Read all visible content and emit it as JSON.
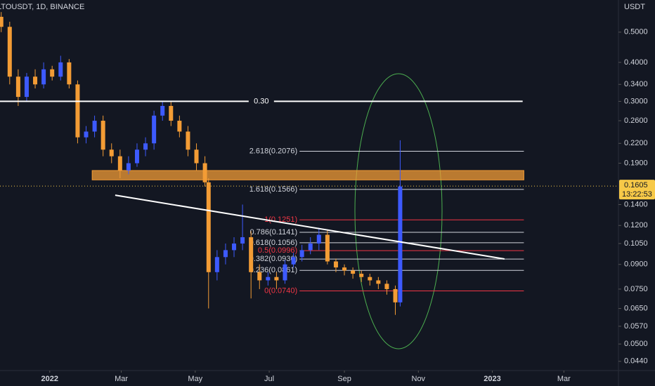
{
  "chart_data": {
    "type": "candlestick",
    "title": "LTOUSDT, 1D, BINANCE",
    "y_axis_label": "USDT",
    "log_scale": true,
    "xlim": [
      -41,
      469
    ],
    "ylim": [
      0.0411,
      0.634
    ],
    "xticks": [
      {
        "value": 0,
        "label": "2022"
      },
      {
        "value": 59,
        "label": "Mar"
      },
      {
        "value": 120,
        "label": "May"
      },
      {
        "value": 181,
        "label": "Jul"
      },
      {
        "value": 243,
        "label": "Sep"
      },
      {
        "value": 304,
        "label": "Nov"
      },
      {
        "value": 365,
        "label": "2023"
      },
      {
        "value": 424,
        "label": "Mar"
      }
    ],
    "yticks": [
      {
        "value": 0.5,
        "label": "0.5000"
      },
      {
        "value": 0.4,
        "label": "0.4000"
      },
      {
        "value": 0.34,
        "label": "0.3400"
      },
      {
        "value": 0.3,
        "label": "0.3000"
      },
      {
        "value": 0.26,
        "label": "0.2600"
      },
      {
        "value": 0.22,
        "label": "0.2200"
      },
      {
        "value": 0.19,
        "label": "0.1900"
      },
      {
        "value": 0.14,
        "label": "0.1400"
      },
      {
        "value": 0.12,
        "label": "0.1200"
      },
      {
        "value": 0.105,
        "label": "0.1050"
      },
      {
        "value": 0.09,
        "label": "0.0900"
      },
      {
        "value": 0.075,
        "label": "0.0750"
      },
      {
        "value": 0.065,
        "label": "0.0650"
      },
      {
        "value": 0.057,
        "label": "0.0570"
      },
      {
        "value": 0.05,
        "label": "0.0500"
      },
      {
        "value": 0.044,
        "label": "0.0440"
      }
    ],
    "up_color": "#3d5afe",
    "down_color": "#f39c35",
    "x": [
      -40,
      -33,
      -26,
      -19,
      -12,
      -5,
      2,
      9,
      16,
      23,
      30,
      37,
      44,
      51,
      58,
      65,
      72,
      79,
      86,
      93,
      100,
      107,
      114,
      121,
      128,
      131,
      138,
      145,
      152,
      159,
      166,
      173,
      180,
      187,
      194,
      201,
      208,
      215,
      222,
      229,
      236,
      243,
      250,
      257,
      264,
      271,
      278,
      285,
      289
    ],
    "open": [
      0.56,
      0.52,
      0.36,
      0.31,
      0.36,
      0.34,
      0.38,
      0.36,
      0.4,
      0.34,
      0.23,
      0.24,
      0.26,
      0.21,
      0.2,
      0.18,
      0.19,
      0.21,
      0.22,
      0.27,
      0.29,
      0.26,
      0.24,
      0.21,
      0.19,
      0.165,
      0.085,
      0.095,
      0.1,
      0.105,
      0.11,
      0.085,
      0.08,
      0.082,
      0.08,
      0.09,
      0.095,
      0.1,
      0.105,
      0.112,
      0.092,
      0.088,
      0.086,
      0.084,
      0.082,
      0.08,
      0.078,
      0.075,
      0.068
    ],
    "high": [
      0.58,
      0.54,
      0.38,
      0.37,
      0.38,
      0.4,
      0.39,
      0.42,
      0.41,
      0.35,
      0.25,
      0.27,
      0.27,
      0.22,
      0.21,
      0.2,
      0.22,
      0.23,
      0.28,
      0.3,
      0.3,
      0.27,
      0.25,
      0.22,
      0.2,
      0.17,
      0.1,
      0.105,
      0.11,
      0.14,
      0.115,
      0.09,
      0.085,
      0.085,
      0.093,
      0.098,
      0.104,
      0.11,
      0.118,
      0.116,
      0.094,
      0.09,
      0.088,
      0.086,
      0.084,
      0.082,
      0.08,
      0.077,
      0.225
    ],
    "low": [
      0.5,
      0.34,
      0.29,
      0.3,
      0.33,
      0.33,
      0.35,
      0.35,
      0.33,
      0.22,
      0.22,
      0.23,
      0.2,
      0.19,
      0.17,
      0.175,
      0.185,
      0.2,
      0.21,
      0.26,
      0.25,
      0.23,
      0.2,
      0.18,
      0.16,
      0.065,
      0.08,
      0.09,
      0.095,
      0.1,
      0.07,
      0.075,
      0.077,
      0.075,
      0.078,
      0.088,
      0.092,
      0.097,
      0.1,
      0.09,
      0.085,
      0.083,
      0.081,
      0.079,
      0.077,
      0.075,
      0.072,
      0.062,
      0.066
    ],
    "close": [
      0.52,
      0.36,
      0.31,
      0.36,
      0.34,
      0.38,
      0.36,
      0.4,
      0.34,
      0.23,
      0.24,
      0.26,
      0.21,
      0.2,
      0.18,
      0.19,
      0.21,
      0.22,
      0.27,
      0.29,
      0.26,
      0.24,
      0.21,
      0.19,
      0.165,
      0.085,
      0.095,
      0.1,
      0.105,
      0.11,
      0.085,
      0.08,
      0.082,
      0.08,
      0.09,
      0.095,
      0.1,
      0.105,
      0.112,
      0.092,
      0.088,
      0.086,
      0.084,
      0.082,
      0.08,
      0.078,
      0.075,
      0.068,
      0.16
    ],
    "level_line": {
      "value": 0.3,
      "label": "0.30",
      "x": [
        -41,
        390
      ]
    },
    "zone": {
      "low": 0.168,
      "high": 0.18,
      "x": [
        35,
        391
      ],
      "color": "#f39c35"
    },
    "trendline": {
      "x": [
        54,
        375
      ],
      "y": [
        0.15,
        0.0937
      ]
    },
    "fib_x": [
      206,
      391
    ],
    "fib_levels": [
      {
        "value": 0.2076,
        "label": "2.618(0.2076)",
        "color": "#d1d4dc"
      },
      {
        "value": 0.1566,
        "label": "1.618(0.1566)",
        "color": "#d1d4dc"
      },
      {
        "value": 0.1251,
        "label": "1(0.1251)",
        "color": "#f23645"
      },
      {
        "value": 0.1141,
        "label": "0.786(0.1141)",
        "color": "#d1d4dc"
      },
      {
        "value": 0.1056,
        "label": "0.618(0.1056)",
        "color": "#d1d4dc"
      },
      {
        "value": 0.0996,
        "label": "0.5(0.0996)",
        "color": "#f23645"
      },
      {
        "value": 0.0936,
        "label": "0.382(0.0936)",
        "color": "#d1d4dc"
      },
      {
        "value": 0.0861,
        "label": "0.236(0.0861)",
        "color": "#d1d4dc"
      },
      {
        "value": 0.074,
        "label": "0(0.0740)",
        "color": "#f23645"
      }
    ],
    "last_price": {
      "value": 0.1605,
      "label": "0.1605"
    },
    "countdown": "13:22:53"
  }
}
